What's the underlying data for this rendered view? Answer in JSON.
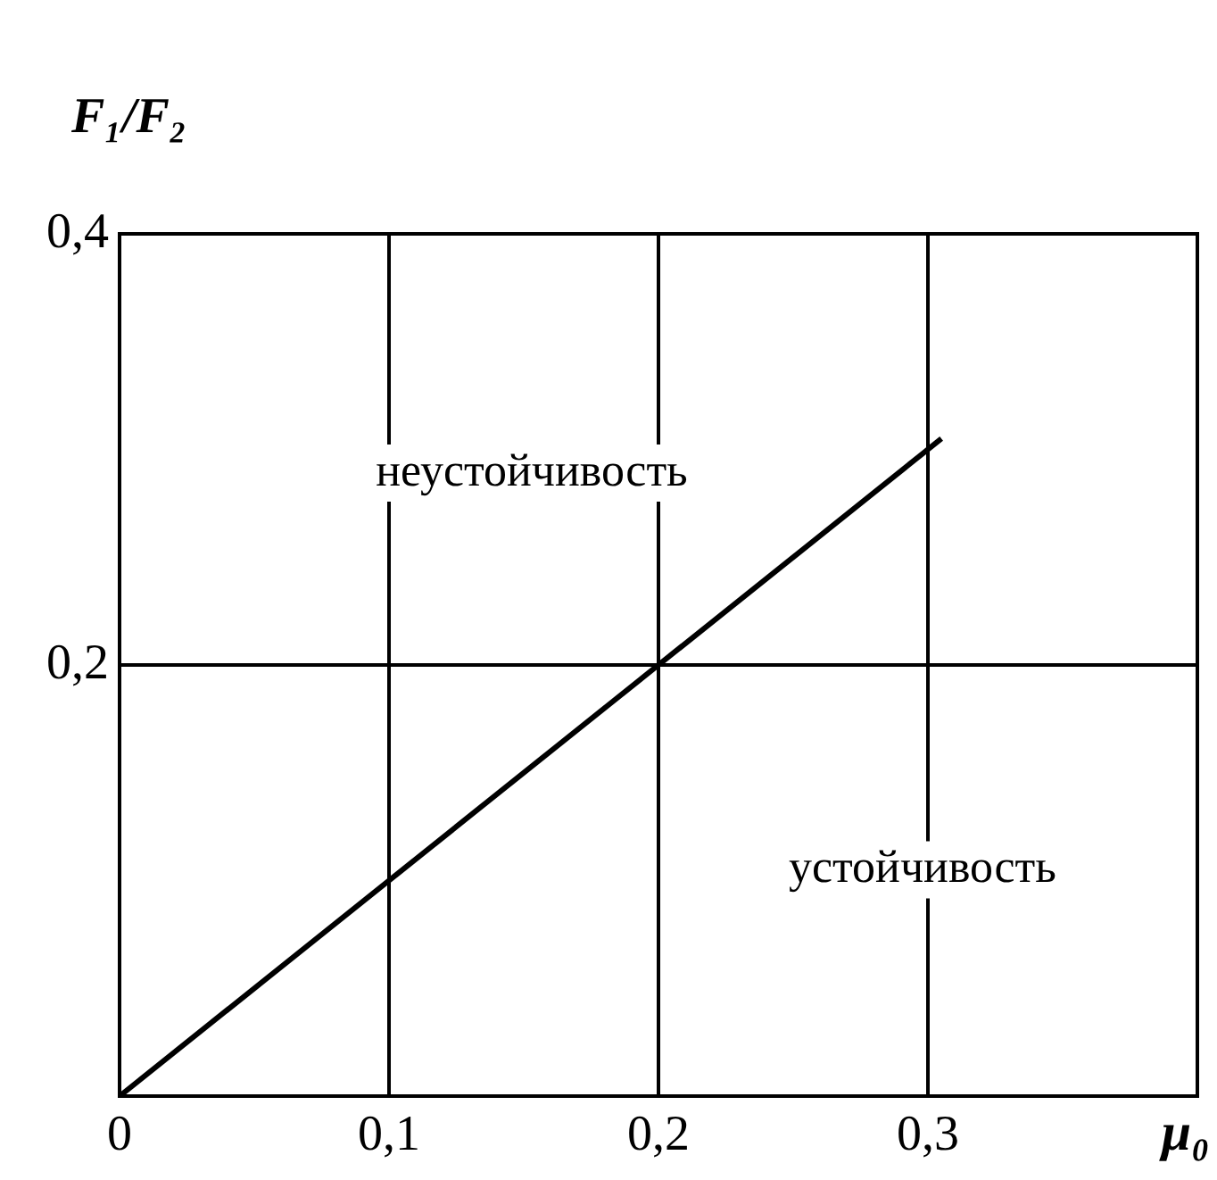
{
  "chart_data": {
    "type": "line",
    "xlabel": "μ₀",
    "ylabel": "F₁/F₂",
    "annotations": [
      "неустойчивость",
      "устойчивость"
    ],
    "x": [
      0,
      0.305
    ],
    "series": [
      {
        "color": "#000000",
        "values": [
          0,
          0.305
        ]
      }
    ],
    "xlim": [
      0,
      0.4
    ],
    "ylim": [
      0,
      0.4
    ],
    "xticks": [
      {
        "value": 0,
        "label": "0"
      },
      {
        "value": 0.1,
        "label": "0,1"
      },
      {
        "value": 0.2,
        "label": "0,2"
      },
      {
        "value": 0.3,
        "label": "0,3"
      }
    ],
    "yticks": [
      {
        "value": 0,
        "label": null
      },
      {
        "value": 0.2,
        "label": "0,2"
      },
      {
        "value": 0.4,
        "label": "0,4"
      }
    ],
    "grid": true,
    "legend": false,
    "marker": "none",
    "line_style": "solid"
  }
}
